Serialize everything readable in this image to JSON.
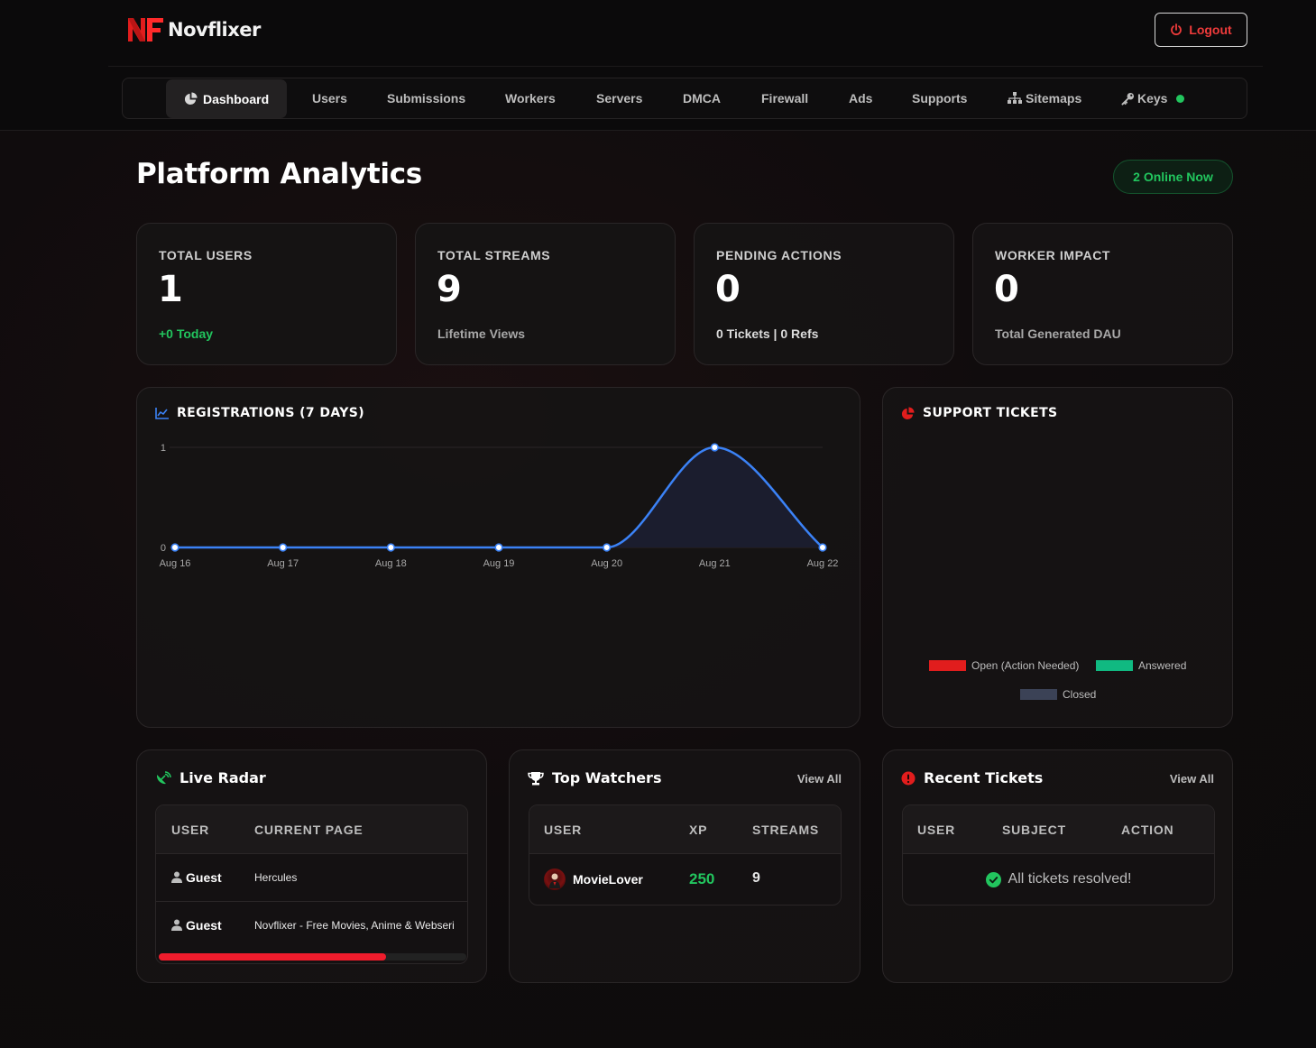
{
  "brand": {
    "name": "Novflixer",
    "logo_mark": "NF"
  },
  "header": {
    "logout_label": "Logout"
  },
  "nav": {
    "items": [
      {
        "label": "Dashboard",
        "icon": "chart-pie-icon",
        "active": true
      },
      {
        "label": "Users"
      },
      {
        "label": "Submissions"
      },
      {
        "label": "Workers"
      },
      {
        "label": "Servers"
      },
      {
        "label": "DMCA"
      },
      {
        "label": "Firewall"
      },
      {
        "label": "Ads"
      },
      {
        "label": "Supports"
      },
      {
        "label": "Sitemaps",
        "icon": "sitemap-icon"
      },
      {
        "label": "Keys",
        "icon": "key-icon",
        "status": "online"
      }
    ]
  },
  "page": {
    "title": "Platform Analytics",
    "online_badge": "2 Online Now"
  },
  "stats": [
    {
      "label": "TOTAL USERS",
      "value": "1",
      "sub": "+0 Today"
    },
    {
      "label": "TOTAL STREAMS",
      "value": "9",
      "sub": "Lifetime Views"
    },
    {
      "label": "PENDING ACTIONS",
      "value": "0",
      "sub": "0 Tickets | 0 Refs"
    },
    {
      "label": "WORKER IMPACT",
      "value": "0",
      "sub": "Total Generated DAU"
    }
  ],
  "registrations": {
    "title": "REGISTRATIONS (7 DAYS)",
    "y_ticks": [
      "0",
      "1"
    ]
  },
  "chart_data": {
    "type": "line",
    "title": "REGISTRATIONS (7 DAYS)",
    "xlabel": "",
    "ylabel": "",
    "x": [
      "Aug 16",
      "Aug 17",
      "Aug 18",
      "Aug 19",
      "Aug 20",
      "Aug 21",
      "Aug 22"
    ],
    "series": [
      {
        "values": [
          0,
          0,
          0,
          0,
          0,
          1,
          0
        ]
      }
    ],
    "ylim": [
      0,
      1
    ],
    "smooth": true,
    "fill": true,
    "grid": true,
    "colors": {
      "line": "#3b82f6",
      "fill": "#1b1d2e"
    }
  },
  "support_tickets": {
    "title": "SUPPORT TICKETS",
    "legend": [
      {
        "label": "Open (Action Needed)",
        "color": "#e11d1d"
      },
      {
        "label": "Answered",
        "color": "#10b981"
      },
      {
        "label": "Closed",
        "color": "#3b4256"
      }
    ]
  },
  "live_radar": {
    "title": "Live Radar",
    "columns": [
      "USER",
      "CURRENT PAGE"
    ],
    "rows": [
      {
        "user": "Guest",
        "page": "Hercules"
      },
      {
        "user": "Guest",
        "page": "Novflixer - Free Movies, Anime & Webseri"
      }
    ],
    "scroll_progress": 0.74
  },
  "top_watchers": {
    "title": "Top Watchers",
    "view_all": "View All",
    "columns": [
      "USER",
      "XP",
      "STREAMS"
    ],
    "rows": [
      {
        "user": "MovieLover",
        "xp": "250",
        "streams": "9"
      }
    ]
  },
  "recent_tickets": {
    "title": "Recent Tickets",
    "view_all": "View All",
    "columns": [
      "USER",
      "SUBJECT",
      "ACTION"
    ],
    "empty_message": "All tickets resolved!"
  },
  "colors": {
    "accent": "#ef1c2c",
    "success": "#22c55e",
    "chart_line": "#3b82f6"
  }
}
